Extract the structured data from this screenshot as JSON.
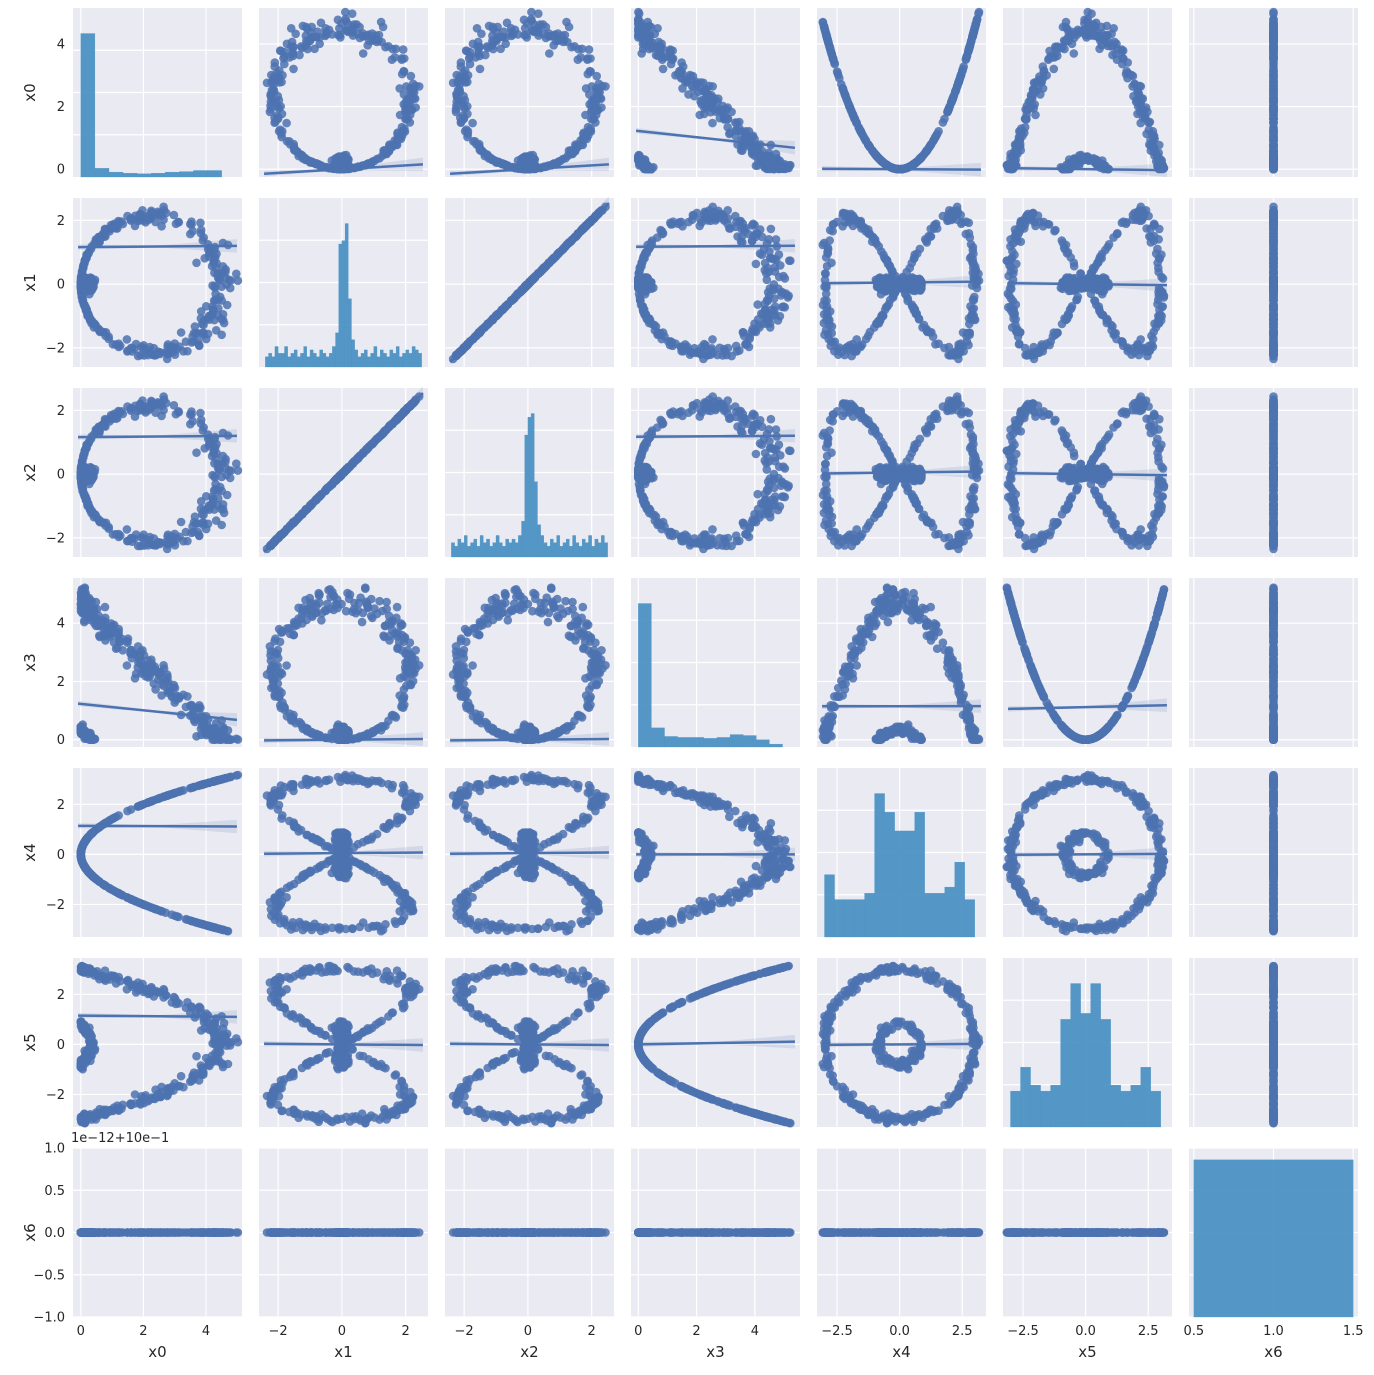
{
  "chart_data": {
    "type": "scatter",
    "variables": [
      "x0",
      "x1",
      "x2",
      "x3",
      "x4",
      "x5",
      "x6"
    ],
    "colors": {
      "points": "#4c72b0",
      "bars": "#4c92c3",
      "panel_background": "#eaeaf2",
      "grid": "#ffffff",
      "text": "#262626"
    },
    "grid": true,
    "xlim": {
      "x0": [
        -0.25,
        5.15
      ],
      "x1": [
        -2.6,
        2.7
      ],
      "x2": [
        -2.6,
        2.7
      ],
      "x3": [
        -0.25,
        5.55
      ],
      "x4": [
        -3.3,
        3.45
      ],
      "x5": [
        -3.3,
        3.45
      ],
      "x6": [
        0.47,
        1.53
      ]
    },
    "ylim": {
      "x0": [
        -0.25,
        5.15
      ],
      "x1": [
        -2.6,
        2.7
      ],
      "x2": [
        -2.6,
        2.7
      ],
      "x3": [
        -0.25,
        5.55
      ],
      "x4": [
        -3.3,
        3.45
      ],
      "x5": [
        -3.3,
        3.45
      ],
      "x6": [
        -1.0,
        1.0
      ]
    },
    "x_ticks": {
      "x0": [
        "0",
        "2",
        "4"
      ],
      "x1": [
        "−2",
        "0",
        "2"
      ],
      "x2": [
        "−2",
        "0",
        "2"
      ],
      "x3": [
        "0",
        "2",
        "4"
      ],
      "x4": [
        "−2.5",
        "0.0",
        "2.5"
      ],
      "x5": [
        "−2.5",
        "0.0",
        "2.5"
      ],
      "x6": [
        "0.5",
        "1.0",
        "1.5"
      ]
    },
    "x_tick_values": {
      "x0": [
        0,
        2,
        4
      ],
      "x1": [
        -2,
        0,
        2
      ],
      "x2": [
        -2,
        0,
        2
      ],
      "x3": [
        0,
        2,
        4
      ],
      "x4": [
        -2.5,
        0,
        2.5
      ],
      "x5": [
        -2.5,
        0,
        2.5
      ],
      "x6": [
        0.5,
        1.0,
        1.5
      ]
    },
    "y_ticks": {
      "x0": [
        "0",
        "2",
        "4"
      ],
      "x1": [
        "−2",
        "0",
        "2"
      ],
      "x2": [
        "−2",
        "0",
        "2"
      ],
      "x3": [
        "0",
        "2",
        "4"
      ],
      "x4": [
        "−2",
        "0",
        "2"
      ],
      "x5": [
        "−2",
        "0",
        "2"
      ],
      "x6": [
        "−1.0",
        "−0.5",
        "0.0",
        "0.5",
        "1.0"
      ]
    },
    "y_tick_values": {
      "x0": [
        0,
        2,
        4
      ],
      "x1": [
        -2,
        0,
        2
      ],
      "x2": [
        -2,
        0,
        2
      ],
      "x3": [
        0,
        2,
        4
      ],
      "x4": [
        -2,
        0,
        2
      ],
      "x5": [
        -2,
        0,
        2
      ],
      "x6": [
        -1.0,
        -0.5,
        0,
        0.5,
        1.0
      ]
    },
    "x6_offset_label": "1e−12+10e−1",
    "histograms": {
      "x0": {
        "bins": [
          0,
          0.45,
          0.9,
          1.35,
          1.8,
          2.25,
          2.7,
          3.15,
          3.6,
          4.05,
          4.5
        ],
        "heights": [
          2.65,
          0.16,
          0.09,
          0.07,
          0.06,
          0.07,
          0.09,
          0.1,
          0.12,
          0.12
        ]
      },
      "x1": {
        "bins": [
          -2.4,
          -2.3,
          -2.2,
          -2.1,
          -2.0,
          -1.9,
          -1.8,
          -1.7,
          -1.6,
          -1.5,
          -1.4,
          -1.3,
          -1.2,
          -1.1,
          -1.0,
          -0.9,
          -0.8,
          -0.7,
          -0.6,
          -0.5,
          -0.4,
          -0.3,
          -0.2,
          -0.1,
          0.0,
          0.1,
          0.2,
          0.3,
          0.4,
          0.5,
          0.6,
          0.7,
          0.8,
          0.9,
          1.0,
          1.1,
          1.2,
          1.3,
          1.4,
          1.5,
          1.6,
          1.7,
          1.8,
          1.9,
          2.0,
          2.1,
          2.2,
          2.3,
          2.4,
          2.5
        ],
        "heights": [
          0.15,
          0.2,
          0.15,
          0.3,
          0.2,
          0.2,
          0.3,
          0.15,
          0.2,
          0.25,
          0.15,
          0.2,
          0.3,
          0.15,
          0.25,
          0.2,
          0.15,
          0.25,
          0.2,
          0.15,
          0.2,
          0.3,
          0.5,
          1.8,
          1.85,
          2.1,
          1.0,
          0.4,
          0.25,
          0.15,
          0.2,
          0.25,
          0.15,
          0.2,
          0.3,
          0.15,
          0.25,
          0.2,
          0.15,
          0.25,
          0.2,
          0.3,
          0.15,
          0.2,
          0.25,
          0.2,
          0.3,
          0.25,
          0.2
        ]
      },
      "x2": {
        "bins": [
          -2.4,
          -2.3,
          -2.2,
          -2.1,
          -2.0,
          -1.9,
          -1.8,
          -1.7,
          -1.6,
          -1.5,
          -1.4,
          -1.3,
          -1.2,
          -1.1,
          -1.0,
          -0.9,
          -0.8,
          -0.7,
          -0.6,
          -0.5,
          -0.4,
          -0.3,
          -0.2,
          -0.1,
          0.0,
          0.1,
          0.2,
          0.3,
          0.4,
          0.5,
          0.6,
          0.7,
          0.8,
          0.9,
          1.0,
          1.1,
          1.2,
          1.3,
          1.4,
          1.5,
          1.6,
          1.7,
          1.8,
          1.9,
          2.0,
          2.1,
          2.2,
          2.3,
          2.4,
          2.5
        ],
        "heights": [
          0.2,
          0.15,
          0.25,
          0.2,
          0.3,
          0.15,
          0.2,
          0.25,
          0.15,
          0.3,
          0.2,
          0.25,
          0.15,
          0.2,
          0.3,
          0.2,
          0.15,
          0.25,
          0.2,
          0.25,
          0.2,
          0.3,
          0.5,
          1.7,
          1.95,
          2.0,
          1.05,
          0.45,
          0.3,
          0.2,
          0.15,
          0.25,
          0.2,
          0.3,
          0.15,
          0.2,
          0.25,
          0.15,
          0.3,
          0.2,
          0.15,
          0.25,
          0.2,
          0.3,
          0.15,
          0.25,
          0.2,
          0.3,
          0.2
        ]
      },
      "x3": {
        "bins": [
          0,
          0.45,
          0.9,
          1.35,
          1.8,
          2.25,
          2.7,
          3.15,
          3.6,
          4.05,
          4.5,
          4.95
        ],
        "heights": [
          3.0,
          0.4,
          0.22,
          0.2,
          0.2,
          0.18,
          0.2,
          0.26,
          0.24,
          0.15,
          0.06
        ]
      },
      "x4": {
        "bins": [
          -3.0,
          -2.6,
          -2.2,
          -1.8,
          -1.4,
          -1.0,
          -0.6,
          -0.2,
          0.2,
          0.6,
          1.0,
          1.4,
          1.8,
          2.2,
          2.6,
          3.0
        ],
        "heights": [
          0.5,
          0.3,
          0.3,
          0.3,
          0.35,
          1.15,
          1.0,
          0.85,
          0.85,
          1.0,
          0.35,
          0.35,
          0.4,
          0.6,
          0.3
        ]
      },
      "x5": {
        "bins": [
          -3.0,
          -2.6,
          -2.2,
          -1.8,
          -1.4,
          -1.0,
          -0.6,
          -0.2,
          0.2,
          0.6,
          1.0,
          1.4,
          1.8,
          2.2,
          2.6,
          3.0
        ],
        "heights": [
          0.3,
          0.5,
          0.35,
          0.3,
          0.35,
          0.9,
          1.2,
          0.95,
          1.2,
          0.9,
          0.35,
          0.3,
          0.35,
          0.5,
          0.3
        ]
      },
      "x6": {
        "bins": [
          0.5,
          1.5
        ],
        "heights": [
          1.0
        ]
      }
    },
    "regression": {
      "x0": {
        "x1": [
          0.06,
          0.0
        ],
        "x2": [
          0.06,
          0.0
        ],
        "x3": [
          -0.1,
          1.22
        ],
        "x4": [
          -0.005,
          0.0
        ],
        "x5": [
          -0.01,
          0.0
        ],
        "x6": [
          0,
          0
        ]
      },
      "x1": {
        "x0": [
          0.008,
          1.16
        ],
        "x2": [
          1.0,
          0.0
        ],
        "x3": [
          0.006,
          1.17
        ],
        "x4": [
          0.008,
          0.05
        ],
        "x5": [
          -0.01,
          0.0
        ],
        "x6": [
          0,
          0
        ]
      },
      "x2": {
        "x0": [
          0.008,
          1.16
        ],
        "x1": [
          1.0,
          0.0
        ],
        "x3": [
          0.006,
          1.17
        ],
        "x4": [
          0.01,
          0.05
        ],
        "x5": [
          -0.01,
          0.0
        ],
        "x6": [
          0,
          0
        ]
      },
      "x3": {
        "x0": [
          -0.11,
          1.23
        ],
        "x1": [
          0.01,
          0.0
        ],
        "x2": [
          0.01,
          0.0
        ],
        "x4": [
          0.001,
          1.15
        ],
        "x5": [
          0.02,
          1.12
        ],
        "x6": [
          0,
          0
        ]
      },
      "x4": {
        "x0": [
          -0.005,
          1.14
        ],
        "x1": [
          0.01,
          0.05
        ],
        "x2": [
          0.01,
          0.05
        ],
        "x3": [
          0.0,
          0.0
        ],
        "x5": [
          0.006,
          0.0
        ],
        "x6": [
          0,
          0
        ]
      },
      "x5": {
        "x0": [
          -0.01,
          1.15
        ],
        "x1": [
          -0.01,
          0.0
        ],
        "x2": [
          -0.01,
          0.0
        ],
        "x3": [
          0.02,
          0.0
        ],
        "x4": [
          0.006,
          0.0
        ],
        "x6": [
          0,
          0
        ]
      }
    }
  }
}
